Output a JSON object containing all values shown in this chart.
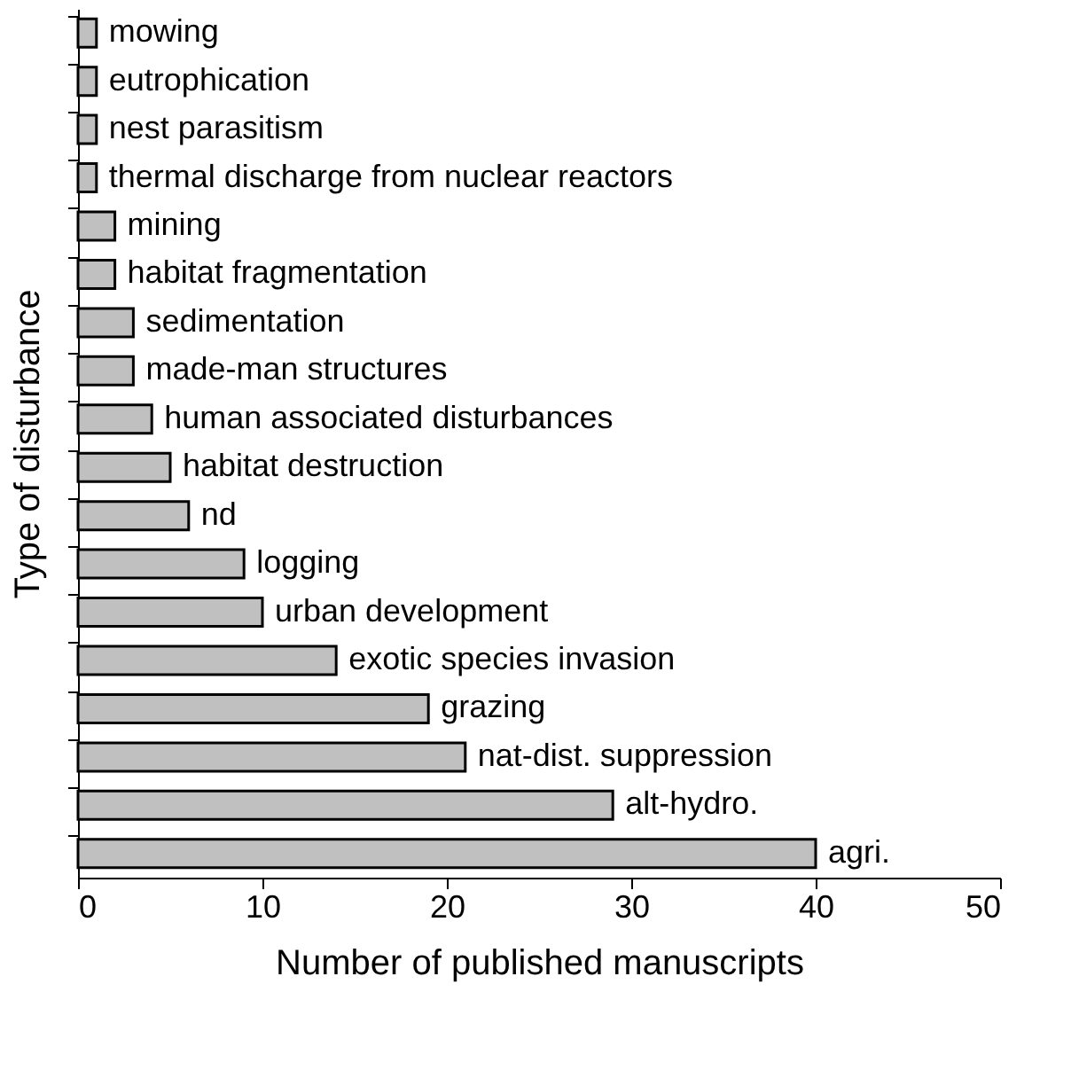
{
  "chart_data": {
    "type": "bar",
    "orientation": "horizontal",
    "xlabel": "Number of published manuscripts",
    "ylabel": "Type of disturbance",
    "categories": [
      "mowing",
      "eutrophication",
      "nest parasitism",
      "thermal discharge from nuclear reactors",
      "mining",
      "habitat fragmentation",
      "sedimentation",
      "made-man structures",
      "human associated disturbances",
      "habitat destruction",
      "nd",
      "logging",
      "urban development",
      "exotic species invasion",
      "grazing",
      "nat-dist. suppression",
      "alt-hydro.",
      "agri."
    ],
    "values": [
      1,
      1,
      1,
      1,
      2,
      2,
      3,
      3,
      4,
      5,
      6,
      9,
      10,
      14,
      19,
      21,
      29,
      40
    ],
    "color": "#c0c0c0",
    "xlim": [
      0,
      50
    ],
    "xticks": [
      0,
      10,
      20,
      30,
      40,
      50
    ],
    "grid": false,
    "tick_labels": "x"
  }
}
